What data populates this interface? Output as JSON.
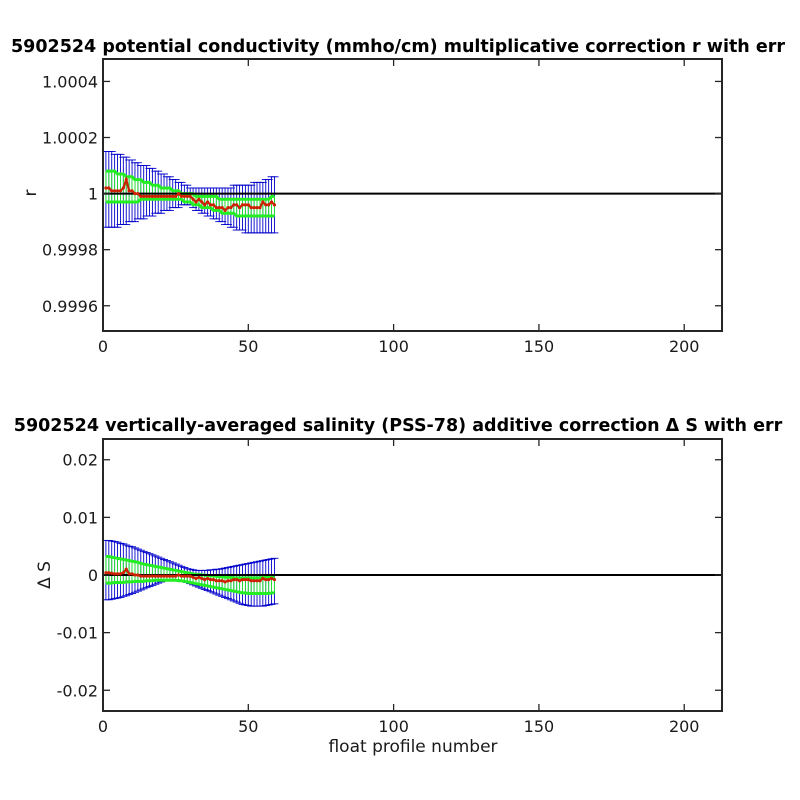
{
  "chart_data": [
    {
      "type": "line",
      "title": "5902524 potential conductivity (mmho/cm) multiplicative correction r with err",
      "xlabel": "",
      "ylabel": "r",
      "xlim": [
        0,
        213
      ],
      "ylim": [
        0.99951,
        1.00048
      ],
      "xticks": [
        0,
        50,
        100,
        150,
        200
      ],
      "xtick_labels": [
        "0",
        "50",
        "100",
        "150",
        "200"
      ],
      "yticks": [
        0.9996,
        0.9998,
        1.0,
        1.0002,
        1.0004
      ],
      "ytick_labels": [
        "0.9996",
        "0.9998",
        "1",
        "1.0002",
        "1.0004"
      ],
      "reference_line": 1.0,
      "grid": false,
      "legend": "none",
      "colors": {
        "reference": "#000000",
        "correction": "#cc2200",
        "inner_error": "#22ee22",
        "outer_error": "#0000cc"
      },
      "x_start": 1,
      "series": [
        {
          "values": [
            1.00002,
            1.00002,
            1.00001,
            1.00001,
            1.00001,
            1.00001,
            1.00002,
            1.00005,
            1.00001,
            1.00001,
            1.0,
            1.0,
            0.99999,
            0.99999,
            0.99999,
            0.99999,
            0.99999,
            0.99999,
            0.99999,
            0.99999,
            0.99999,
            0.99999,
            0.99999,
            0.99999,
            0.99999,
            1.0,
            0.99999,
            0.99999,
            0.99999,
            0.99999,
            0.99998,
            0.99997,
            0.99998,
            0.99997,
            0.99996,
            0.99997,
            0.99996,
            0.99996,
            0.99995,
            0.99995,
            0.99995,
            0.99994,
            0.99995,
            0.99995,
            0.99996,
            0.99996,
            0.99995,
            0.99996,
            0.99996,
            0.99996,
            0.99995,
            0.99995,
            0.99995,
            0.99995,
            0.99997,
            0.99996,
            0.99996,
            0.99997,
            0.99996
          ]
        },
        {
          "values": [
            1.00008,
            1.00008,
            1.00008,
            1.00008,
            1.00007,
            1.00007,
            1.00007,
            1.00006,
            1.00006,
            1.00006,
            1.00005,
            1.00005,
            1.00005,
            1.00004,
            1.00004,
            1.00004,
            1.00003,
            1.00003,
            1.00003,
            1.00002,
            1.00002,
            1.00002,
            1.00002,
            1.00001,
            1.00001,
            1.00001,
            1.0,
            1.0,
            1.0,
            1.0,
            1.0,
            0.99999,
            0.99999,
            0.99999,
            0.99999,
            0.99999,
            0.99999,
            0.99999,
            0.99999,
            0.99998,
            0.99998,
            0.99998,
            0.99998,
            0.99998,
            0.99998,
            0.99998,
            0.99998,
            0.99998,
            0.99998,
            0.99998,
            0.99998,
            0.99998,
            0.99998,
            0.99998,
            0.99998,
            0.99998,
            0.99998,
            0.99999,
            0.99999
          ]
        },
        {
          "values": [
            0.99997,
            0.99997,
            0.99997,
            0.99997,
            0.99997,
            0.99997,
            0.99997,
            0.99997,
            0.99997,
            0.99997,
            0.99997,
            0.99997,
            0.99998,
            0.99998,
            0.99998,
            0.99998,
            0.99998,
            0.99998,
            0.99998,
            0.99998,
            0.99998,
            0.99998,
            0.99998,
            0.99998,
            0.99998,
            0.99998,
            0.99998,
            0.99997,
            0.99997,
            0.99997,
            0.99996,
            0.99996,
            0.99996,
            0.99995,
            0.99995,
            0.99995,
            0.99995,
            0.99994,
            0.99994,
            0.99994,
            0.99993,
            0.99993,
            0.99993,
            0.99993,
            0.99993,
            0.99992,
            0.99992,
            0.99992,
            0.99992,
            0.99992,
            0.99992,
            0.99992,
            0.99992,
            0.99992,
            0.99992,
            0.99992,
            0.99992,
            0.99992,
            0.99992
          ]
        }
      ],
      "error_bars": {
        "upper": [
          1.00015,
          1.00015,
          1.00015,
          1.00014,
          1.00014,
          1.00014,
          1.00013,
          1.00013,
          1.00012,
          1.00012,
          1.00011,
          1.00011,
          1.0001,
          1.0001,
          1.0001,
          1.00009,
          1.00009,
          1.00008,
          1.00008,
          1.00007,
          1.00007,
          1.00006,
          1.00006,
          1.00005,
          1.00005,
          1.00004,
          1.00004,
          1.00003,
          1.00003,
          1.00002,
          1.00002,
          1.00002,
          1.00002,
          1.00002,
          1.00002,
          1.00002,
          1.00002,
          1.00002,
          1.00002,
          1.00002,
          1.00002,
          1.00002,
          1.00002,
          1.00002,
          1.00003,
          1.00003,
          1.00003,
          1.00003,
          1.00003,
          1.00003,
          1.00003,
          1.00004,
          1.00004,
          1.00004,
          1.00004,
          1.00005,
          1.00005,
          1.00006,
          1.00006
        ],
        "lower": [
          0.99988,
          0.99988,
          0.99988,
          0.99988,
          0.99988,
          0.99989,
          0.99989,
          0.99989,
          0.9999,
          0.9999,
          0.9999,
          0.99991,
          0.99991,
          0.99991,
          0.99992,
          0.99992,
          0.99992,
          0.99993,
          0.99993,
          0.99993,
          0.99994,
          0.99994,
          0.99994,
          0.99995,
          0.99995,
          0.99995,
          0.99996,
          0.99996,
          0.99996,
          0.99996,
          0.99995,
          0.99994,
          0.99994,
          0.99993,
          0.99993,
          0.99992,
          0.99992,
          0.99991,
          0.99991,
          0.9999,
          0.9999,
          0.99989,
          0.99989,
          0.99988,
          0.99988,
          0.99987,
          0.99987,
          0.99987,
          0.99986,
          0.99986,
          0.99986,
          0.99986,
          0.99986,
          0.99986,
          0.99986,
          0.99986,
          0.99986,
          0.99986,
          0.99986
        ]
      }
    },
    {
      "type": "line",
      "title": "5902524 vertically-averaged salinity (PSS-78) additive correction Δ S with err",
      "xlabel": "float profile number",
      "ylabel": "Δ S",
      "xlim": [
        0,
        213
      ],
      "ylim": [
        -0.0236,
        0.0236
      ],
      "xticks": [
        0,
        50,
        100,
        150,
        200
      ],
      "xtick_labels": [
        "0",
        "50",
        "100",
        "150",
        "200"
      ],
      "yticks": [
        -0.02,
        -0.01,
        0,
        0.01,
        0.02
      ],
      "ytick_labels": [
        "-0.02",
        "-0.01",
        "0",
        "0.01",
        "0.02"
      ],
      "reference_line": 0,
      "grid": false,
      "legend": "none",
      "colors": {
        "reference": "#000000",
        "correction": "#cc2200",
        "inner_error": "#22ee22",
        "outer_error": "#0000cc"
      },
      "x_start": 1,
      "series": [
        {
          "values": [
            0.0004,
            0.0004,
            0.0003,
            0.0002,
            0.0002,
            0.0002,
            0.0004,
            0.001,
            0.0002,
            0.0002,
            0.0,
            0.0,
            -0.0002,
            -0.0002,
            -0.0002,
            -0.0002,
            -0.0002,
            -0.0002,
            -0.0002,
            -0.0002,
            -0.0002,
            -0.0002,
            -0.0002,
            -0.0002,
            -0.0002,
            0.0,
            -0.0002,
            -0.0002,
            -0.0002,
            -0.0002,
            -0.0004,
            -0.0006,
            -0.0004,
            -0.0006,
            -0.0008,
            -0.0006,
            -0.0008,
            -0.0008,
            -0.001,
            -0.001,
            -0.001,
            -0.0012,
            -0.001,
            -0.001,
            -0.0008,
            -0.0008,
            -0.001,
            -0.0008,
            -0.0008,
            -0.0008,
            -0.001,
            -0.001,
            -0.001,
            -0.001,
            -0.0006,
            -0.0008,
            -0.0008,
            -0.0006,
            -0.0008
          ]
        },
        {
          "values": [
            0.0032,
            0.0032,
            0.0031,
            0.003,
            0.0029,
            0.0028,
            0.0027,
            0.0026,
            0.0025,
            0.0024,
            0.0023,
            0.0022,
            0.002,
            0.0019,
            0.0018,
            0.0017,
            0.0016,
            0.0015,
            0.0014,
            0.0013,
            0.0012,
            0.0011,
            0.001,
            0.0009,
            0.0008,
            0.0007,
            0.0006,
            0.0005,
            0.0004,
            0.0003,
            0.0002,
            0.0001,
            0.0001,
            0.0,
            0.0,
            -0.0001,
            -0.0001,
            -0.0002,
            -0.0002,
            -0.0003,
            -0.0003,
            -0.0004,
            -0.0004,
            -0.0004,
            -0.0005,
            -0.0005,
            -0.0005,
            -0.0005,
            -0.0005,
            -0.0005,
            -0.0005,
            -0.0005,
            -0.0005,
            -0.0005,
            -0.0004,
            -0.0004,
            -0.0004,
            -0.0003,
            -0.0003
          ]
        },
        {
          "values": [
            -0.0014,
            -0.0014,
            -0.0014,
            -0.0013,
            -0.0013,
            -0.0013,
            -0.0013,
            -0.0012,
            -0.0012,
            -0.0012,
            -0.0011,
            -0.0011,
            -0.0011,
            -0.0011,
            -0.001,
            -0.001,
            -0.001,
            -0.0009,
            -0.0009,
            -0.0009,
            -0.0009,
            -0.0009,
            -0.0009,
            -0.0009,
            -0.0009,
            -0.001,
            -0.001,
            -0.0011,
            -0.0012,
            -0.0013,
            -0.0014,
            -0.0015,
            -0.0016,
            -0.0017,
            -0.0018,
            -0.0019,
            -0.002,
            -0.0021,
            -0.0022,
            -0.0023,
            -0.0024,
            -0.0025,
            -0.0026,
            -0.0027,
            -0.0028,
            -0.0029,
            -0.003,
            -0.0031,
            -0.0031,
            -0.0032,
            -0.0032,
            -0.0032,
            -0.0032,
            -0.0032,
            -0.0032,
            -0.0032,
            -0.0032,
            -0.0031,
            -0.0031
          ]
        }
      ],
      "error_bars": {
        "upper": [
          0.006,
          0.006,
          0.0059,
          0.0058,
          0.0057,
          0.0055,
          0.0054,
          0.0052,
          0.005,
          0.0049,
          0.0047,
          0.0045,
          0.0043,
          0.0041,
          0.0039,
          0.0037,
          0.0035,
          0.0033,
          0.0031,
          0.0029,
          0.0027,
          0.0025,
          0.0023,
          0.0021,
          0.0019,
          0.0017,
          0.0015,
          0.0013,
          0.0011,
          0.001,
          0.0009,
          0.0008,
          0.0008,
          0.0008,
          0.0008,
          0.0008,
          0.0009,
          0.0009,
          0.001,
          0.001,
          0.0011,
          0.0012,
          0.0013,
          0.0014,
          0.0015,
          0.0016,
          0.0017,
          0.0018,
          0.0019,
          0.002,
          0.0021,
          0.0022,
          0.0023,
          0.0024,
          0.0025,
          0.0026,
          0.0027,
          0.0028,
          0.0029
        ],
        "lower": [
          -0.0043,
          -0.0043,
          -0.0042,
          -0.0041,
          -0.004,
          -0.0039,
          -0.0037,
          -0.0036,
          -0.0034,
          -0.0032,
          -0.003,
          -0.0028,
          -0.0026,
          -0.0024,
          -0.0022,
          -0.002,
          -0.0018,
          -0.0016,
          -0.0014,
          -0.0012,
          -0.001,
          -0.0009,
          -0.0008,
          -0.0008,
          -0.0008,
          -0.0009,
          -0.001,
          -0.0011,
          -0.0013,
          -0.0015,
          -0.0017,
          -0.0019,
          -0.0021,
          -0.0023,
          -0.0025,
          -0.0027,
          -0.0029,
          -0.0031,
          -0.0033,
          -0.0035,
          -0.0037,
          -0.0039,
          -0.0041,
          -0.0043,
          -0.0045,
          -0.0047,
          -0.0049,
          -0.0051,
          -0.0052,
          -0.0053,
          -0.0054,
          -0.0054,
          -0.0054,
          -0.0054,
          -0.0054,
          -0.0053,
          -0.0052,
          -0.0051,
          -0.005
        ]
      }
    }
  ]
}
